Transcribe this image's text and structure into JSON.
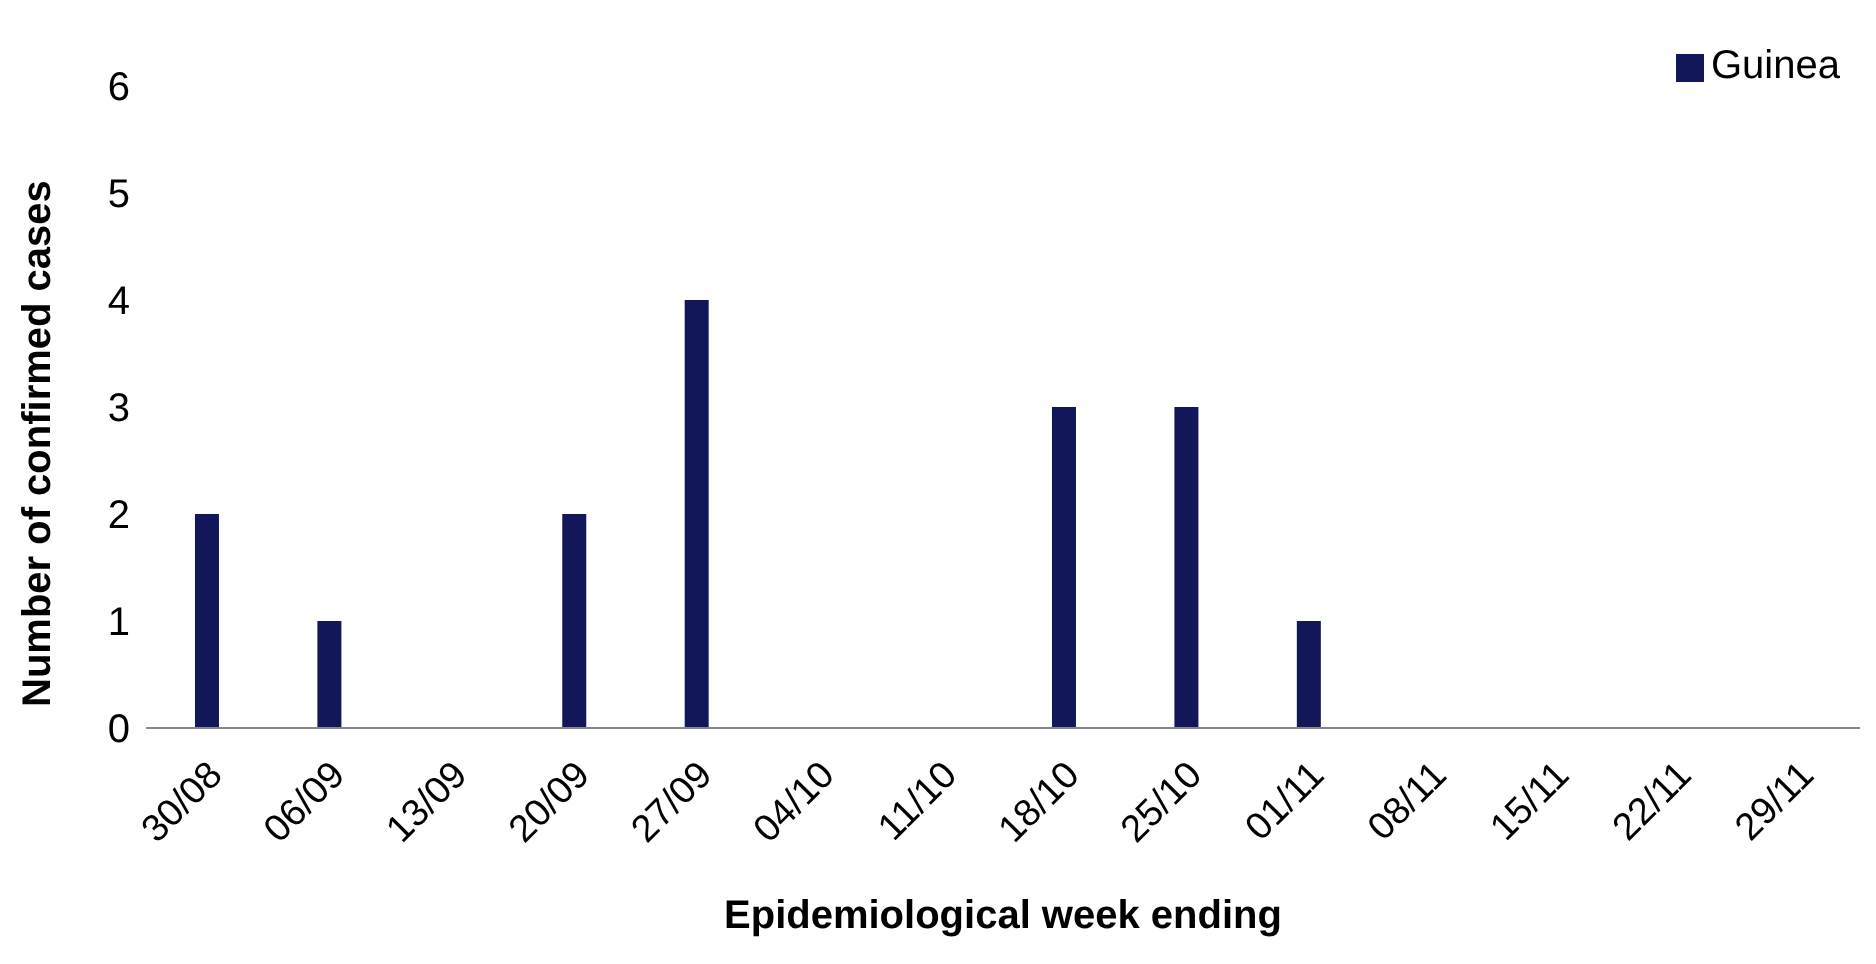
{
  "chart_data": {
    "type": "bar",
    "xlabel": "Epidemiological week ending",
    "ylabel": "Number of confirmed cases",
    "categories": [
      "30/08",
      "06/09",
      "13/09",
      "20/09",
      "27/09",
      "04/10",
      "11/10",
      "18/10",
      "25/10",
      "01/11",
      "08/11",
      "15/11",
      "22/11",
      "29/11"
    ],
    "series": [
      {
        "name": "Guinea",
        "color": "#12175a",
        "values": [
          2,
          1,
          0,
          2,
          4,
          0,
          0,
          3,
          3,
          1,
          0,
          0,
          0,
          0
        ]
      }
    ],
    "ylim": [
      0,
      6
    ],
    "yticks": [
      0,
      1,
      2,
      3,
      4,
      5,
      6
    ],
    "grid": false,
    "legend": "top right"
  }
}
